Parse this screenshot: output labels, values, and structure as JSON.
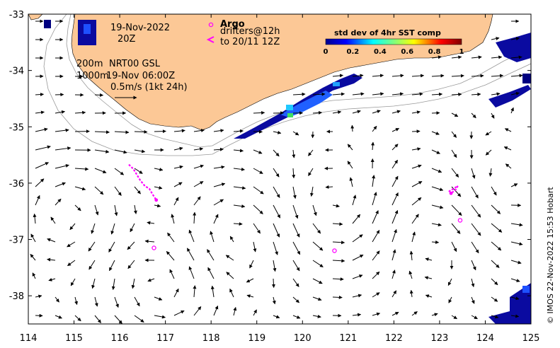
{
  "map": {
    "x_ticks": [
      114,
      115,
      116,
      117,
      118,
      119,
      120,
      121,
      122,
      123,
      124,
      125
    ],
    "y_ticks": [
      -33,
      -34,
      -35,
      -36,
      -37,
      -38
    ],
    "x_range": [
      114,
      125
    ],
    "y_range": [
      -38.5,
      -33
    ],
    "land_color": "#fcc896",
    "ocean_color": "#ffffff"
  },
  "header": {
    "date_line": "19-Nov-2022",
    "time_line": "20Z",
    "depth_200": "200m",
    "depth_1000": "1000m",
    "product": "NRT00 GSL",
    "product_time": "19-Nov 06:00Z",
    "scale_label": "0.5m/s (1kt 24h)"
  },
  "legend": {
    "argo_label": "Argo",
    "drifters_label": "drifters@12h",
    "drifters_to": "to 20/11 12Z",
    "argo_color": "#ff00ff"
  },
  "colorbar": {
    "title": "std dev of 4hr SST comp",
    "ticks": [
      "0",
      "0.2",
      "0.4",
      "0.6",
      "0.8",
      "1"
    ]
  },
  "credit": "© IMOS 22-Nov-2022 15:53 Hobart",
  "argo_floats": [
    {
      "lon": 120.7,
      "lat": -37.2
    },
    {
      "lon": 116.75,
      "lat": -37.15
    },
    {
      "lon": 123.45,
      "lat": -36.66
    }
  ],
  "drifter_tracks": [
    [
      [
        116.2,
        -35.67
      ],
      [
        116.3,
        -35.75
      ],
      [
        116.45,
        -35.95
      ],
      [
        116.55,
        -36.05
      ],
      [
        116.65,
        -36.1
      ],
      [
        116.72,
        -36.2
      ],
      [
        116.8,
        -36.3
      ]
    ],
    [
      [
        123.2,
        -36.15
      ],
      [
        123.3,
        -36.1
      ],
      [
        123.4,
        -36.05
      ],
      [
        123.35,
        -36.12
      ],
      [
        123.25,
        -36.18
      ]
    ]
  ]
}
